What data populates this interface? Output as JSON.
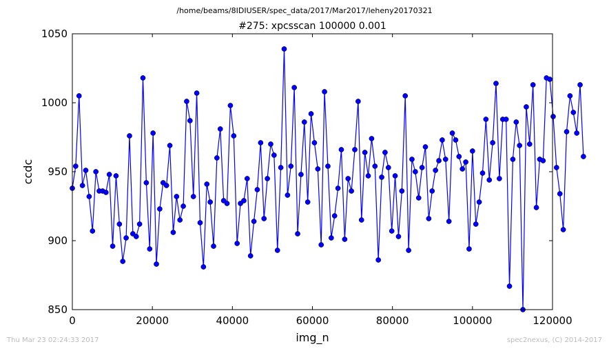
{
  "header": {
    "path": "/home/beams/8IDIUSER/spec_data/2017/Mar2017/leheny20170321",
    "scan_title": "#275: xpcsscan 100000 0.001"
  },
  "footer": {
    "timestamp": "Thu Mar 23 02:24:33 2017",
    "credit": "spec2nexus, (C) 2014-2017"
  },
  "chart_data": {
    "type": "line",
    "title": "#275: xpcsscan 100000 0.001",
    "xlabel": "img_n",
    "ylabel": "ccdc",
    "xlim": [
      0,
      120000
    ],
    "ylim": [
      850,
      1050
    ],
    "xticks": [
      0,
      20000,
      40000,
      60000,
      80000,
      100000,
      120000
    ],
    "yticks": [
      850,
      900,
      950,
      1000,
      1050
    ],
    "grid": false,
    "line_color": "#0000ff",
    "marker": "circle",
    "x_start": 0,
    "x_step": 840.34,
    "values": [
      938,
      954,
      1005,
      940,
      951,
      932,
      907,
      950,
      936,
      936,
      935,
      948,
      896,
      947,
      912,
      885,
      902,
      976,
      905,
      903,
      912,
      1018,
      942,
      894,
      978,
      883,
      923,
      942,
      940,
      969,
      906,
      932,
      915,
      925,
      1001,
      987,
      932,
      1007,
      913,
      881,
      941,
      928,
      896,
      960,
      981,
      929,
      927,
      998,
      976,
      898,
      927,
      929,
      945,
      889,
      914,
      937,
      971,
      916,
      945,
      970,
      962,
      893,
      953,
      1039,
      933,
      954,
      1011,
      905,
      948,
      986,
      928,
      992,
      971,
      952,
      897,
      1008,
      954,
      902,
      918,
      938,
      966,
      901,
      945,
      936,
      966,
      1001,
      915,
      964,
      947,
      974,
      954,
      886,
      946,
      964,
      953,
      907,
      947,
      903,
      936,
      1005,
      893,
      959,
      950,
      931,
      953,
      968,
      916,
      936,
      951,
      958,
      973,
      959,
      914,
      978,
      973,
      961,
      952,
      957,
      894,
      965,
      912,
      928,
      949,
      988,
      944,
      971,
      1014,
      945,
      988,
      988,
      867,
      959,
      986,
      969,
      850,
      997,
      970,
      1013,
      924,
      959,
      958,
      1018,
      1017,
      990,
      953,
      934,
      908,
      979,
      1005,
      993,
      978,
      1013,
      961
    ]
  }
}
